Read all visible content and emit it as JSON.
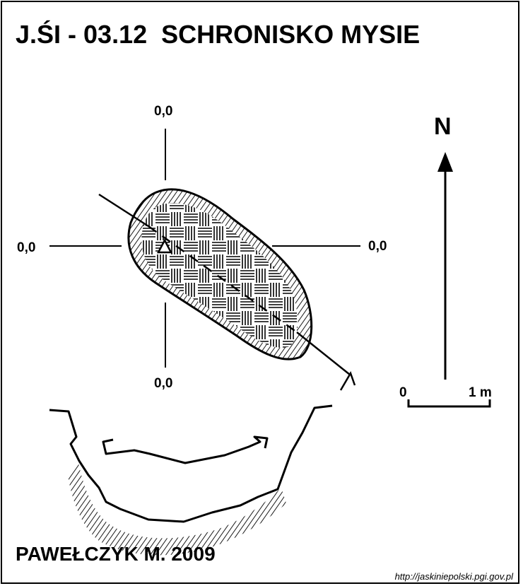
{
  "header": {
    "title": "J.ŚI - 03.12  SCHRONISKO MYSIE"
  },
  "plan": {
    "height_labels": {
      "top": "0,0",
      "left": "0,0",
      "right": "0,0",
      "bottom": "0,0"
    }
  },
  "north_arrow": {
    "label": "N"
  },
  "scale_bar": {
    "start_label": "0",
    "end_label": "1 m"
  },
  "footer": {
    "author": "PAWEŁCZYK M. 2009",
    "source": "http://jaskiniepolski.pgi.gov.pl"
  }
}
